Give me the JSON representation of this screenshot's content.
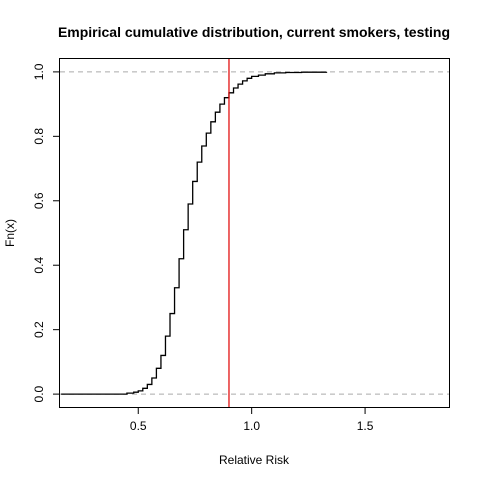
{
  "chart_data": {
    "type": "line",
    "title": "Empirical cumulative distribution, current smokers, testing",
    "xlabel": "Relative Risk",
    "ylabel": "Fn(x)",
    "xlim": [
      0.155,
      1.87
    ],
    "ylim": [
      -0.04,
      1.04
    ],
    "x_ticks": [
      0.5,
      1.0,
      1.5
    ],
    "x_tick_labels": [
      "0.5",
      "1.0",
      "1.5"
    ],
    "y_ticks": [
      0.0,
      0.2,
      0.4,
      0.6,
      0.8,
      1.0
    ],
    "y_tick_labels": [
      "0.0",
      "0.2",
      "0.4",
      "0.6",
      "0.8",
      "1.0"
    ],
    "reference_hlines": [
      0.0,
      1.0
    ],
    "reference_vline": 0.9,
    "grid": false,
    "legend": "none",
    "colors": {
      "series": "#000000",
      "vline": "#e00000",
      "hline": "#aaaaaa"
    },
    "series": [
      {
        "x": [
          0.16,
          0.4,
          0.45,
          0.48,
          0.5,
          0.52,
          0.54,
          0.56,
          0.58,
          0.6,
          0.62,
          0.64,
          0.66,
          0.68,
          0.7,
          0.72,
          0.74,
          0.76,
          0.78,
          0.8,
          0.82,
          0.84,
          0.86,
          0.88,
          0.9,
          0.92,
          0.94,
          0.96,
          0.98,
          1.0,
          1.03,
          1.06,
          1.1,
          1.15,
          1.22,
          1.33
        ],
        "y": [
          0.0,
          0.0,
          0.003,
          0.006,
          0.01,
          0.018,
          0.03,
          0.05,
          0.08,
          0.12,
          0.18,
          0.25,
          0.33,
          0.42,
          0.51,
          0.59,
          0.66,
          0.72,
          0.77,
          0.81,
          0.845,
          0.875,
          0.9,
          0.92,
          0.935,
          0.95,
          0.962,
          0.972,
          0.98,
          0.986,
          0.99,
          0.994,
          0.997,
          0.998,
          0.999,
          1.0
        ]
      }
    ]
  }
}
